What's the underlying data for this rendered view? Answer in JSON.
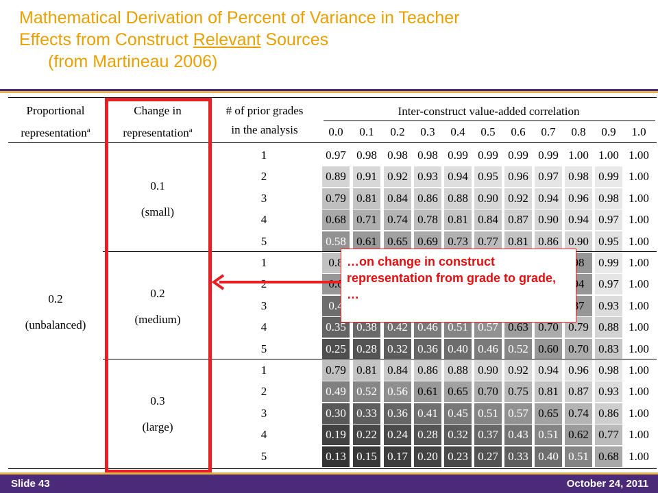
{
  "title": {
    "line1": "Mathematical Derivation of Percent of Variance in Teacher",
    "line2_pre": "Effects from Construct ",
    "line2_underlined": "Relevant",
    "line2_post": " Sources",
    "line3": "(from Martineau 2006)"
  },
  "table": {
    "headers": {
      "proportional": "Proportional",
      "representation": "representation",
      "sup": "a",
      "change_in": "Change in",
      "prior_grades_1": "# of prior grades",
      "prior_grades_2": "in the analysis",
      "inter_construct": "Inter-construct value-added correlation"
    },
    "correlations": [
      "0.0",
      "0.1",
      "0.2",
      "0.3",
      "0.4",
      "0.5",
      "0.6",
      "0.7",
      "0.8",
      "0.9",
      "1.0"
    ],
    "proportional_value": "0.2",
    "proportional_label": "(unbalanced)",
    "groups": [
      {
        "change_value": "0.1",
        "change_label": "(small)",
        "rows": [
          {
            "prior": "1",
            "values": [
              "0.97",
              "0.98",
              "0.98",
              "0.98",
              "0.99",
              "0.99",
              "0.99",
              "0.99",
              "1.00",
              "1.00",
              "1.00"
            ]
          },
          {
            "prior": "2",
            "values": [
              "0.89",
              "0.91",
              "0.92",
              "0.93",
              "0.94",
              "0.95",
              "0.96",
              "0.97",
              "0.98",
              "0.99",
              "1.00"
            ]
          },
          {
            "prior": "3",
            "values": [
              "0.79",
              "0.81",
              "0.84",
              "0.86",
              "0.88",
              "0.90",
              "0.92",
              "0.94",
              "0.96",
              "0.98",
              "1.00"
            ]
          },
          {
            "prior": "4",
            "values": [
              "0.68",
              "0.71",
              "0.74",
              "0.78",
              "0.81",
              "0.84",
              "0.87",
              "0.90",
              "0.94",
              "0.97",
              "1.00"
            ]
          },
          {
            "prior": "5",
            "values": [
              "0.58",
              "0.61",
              "0.65",
              "0.69",
              "0.73",
              "0.77",
              "0.81",
              "0.86",
              "0.90",
              "0.95",
              "1.00"
            ]
          }
        ]
      },
      {
        "change_value": "0.2",
        "change_label": "(medium)",
        "rows": [
          {
            "prior": "1",
            "values": [
              "0.8",
              "",
              "",
              "",
              "",
              "",
              "",
              "",
              "98",
              "0.99",
              "1.00"
            ]
          },
          {
            "prior": "2",
            "values": [
              "0.6",
              "",
              "",
              "",
              "",
              "",
              "",
              "",
              "94",
              "0.97",
              "1.00"
            ]
          },
          {
            "prior": "3",
            "values": [
              "0.4",
              "",
              "",
              "",
              "",
              "",
              "",
              "",
              "87",
              "0.93",
              "1.00"
            ]
          },
          {
            "prior": "4",
            "values": [
              "0.35",
              "0.38",
              "0.42",
              "0.46",
              "0.51",
              "0.57",
              "0.63",
              "0.70",
              "0.79",
              "0.88",
              "1.00"
            ]
          },
          {
            "prior": "5",
            "values": [
              "0.25",
              "0.28",
              "0.32",
              "0.36",
              "0.40",
              "0.46",
              "0.52",
              "0.60",
              "0.70",
              "0.83",
              "1.00"
            ]
          }
        ]
      },
      {
        "change_value": "0.3",
        "change_label": "(large)",
        "rows": [
          {
            "prior": "1",
            "values": [
              "0.79",
              "0.81",
              "0.84",
              "0.86",
              "0.88",
              "0.90",
              "0.92",
              "0.94",
              "0.96",
              "0.98",
              "1.00"
            ]
          },
          {
            "prior": "2",
            "values": [
              "0.49",
              "0.52",
              "0.56",
              "0.61",
              "0.65",
              "0.70",
              "0.75",
              "0.81",
              "0.87",
              "0.93",
              "1.00"
            ]
          },
          {
            "prior": "3",
            "values": [
              "0.30",
              "0.33",
              "0.36",
              "0.41",
              "0.45",
              "0.51",
              "0.57",
              "0.65",
              "0.74",
              "0.86",
              "1.00"
            ]
          },
          {
            "prior": "4",
            "values": [
              "0.19",
              "0.22",
              "0.24",
              "0.28",
              "0.32",
              "0.37",
              "0.43",
              "0.51",
              "0.62",
              "0.77",
              "1.00"
            ]
          },
          {
            "prior": "5",
            "values": [
              "0.13",
              "0.15",
              "0.17",
              "0.20",
              "0.23",
              "0.27",
              "0.33",
              "0.40",
              "0.51",
              "0.68",
              "1.00"
            ]
          }
        ]
      }
    ]
  },
  "callout": {
    "text": "…on change in construct representation from grade to grade, …",
    "color": "#e01010"
  },
  "footer": {
    "slide": "Slide 43",
    "date": "October 24, 2011",
    "bg_color": "#4b2a7a",
    "accent_color": "#e3b54a"
  }
}
